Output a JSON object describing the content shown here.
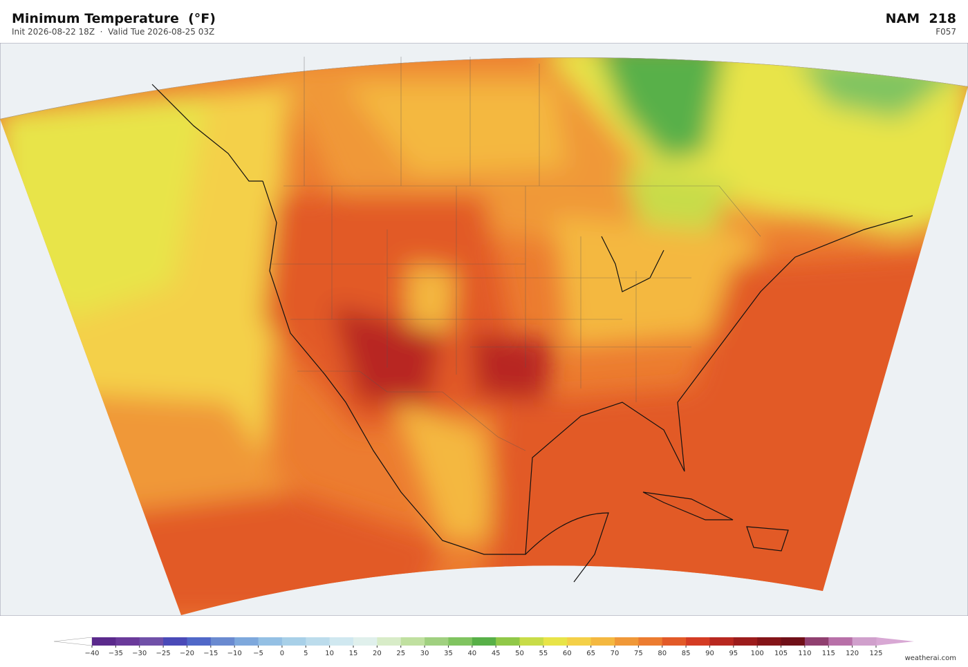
{
  "header": {
    "title": "Minimum Temperature  (°F)",
    "subtitle": "Init 2026-08-22 18Z  ·  Valid Tue 2026-08-25 03Z",
    "model": "NAM  218",
    "forecast_hour": "F057"
  },
  "colorbar": {
    "ticks": [
      {
        "value": -40,
        "label": "−40"
      },
      {
        "value": -35,
        "label": "−35"
      },
      {
        "value": -30,
        "label": "−30"
      },
      {
        "value": -25,
        "label": "−25"
      },
      {
        "value": -20,
        "label": "−20"
      },
      {
        "value": -15,
        "label": "−15"
      },
      {
        "value": -10,
        "label": "−10"
      },
      {
        "value": -5,
        "label": "−5"
      },
      0,
      5,
      10,
      15,
      20,
      25,
      30,
      35,
      40,
      45,
      50,
      55,
      60,
      65,
      70,
      75,
      80,
      85,
      90,
      95,
      100,
      105,
      110,
      115,
      120,
      125
    ],
    "colors": [
      "#5b2a8c",
      "#6a3a9a",
      "#7050a8",
      "#4a4ab8",
      "#5068c8",
      "#6a8ad0",
      "#7ea8dc",
      "#94c0e4",
      "#a8d0e8",
      "#bcdcec",
      "#d0e8f0",
      "#e0f0ec",
      "#d8ecc8",
      "#c0e0a0",
      "#a0d080",
      "#80c460",
      "#58b048",
      "#90c848",
      "#c8dc48",
      "#e8e448",
      "#f4d048",
      "#f4b840",
      "#f09838",
      "#ec7c30",
      "#e25a28",
      "#d43c24",
      "#b82820",
      "#9c1c1c",
      "#841418",
      "#701018",
      "#904070",
      "#b870a8",
      "#d0a0cc"
    ],
    "under_color": "#ffffff",
    "over_color": "#d8a8d4"
  },
  "credit": "weatherai.com"
}
